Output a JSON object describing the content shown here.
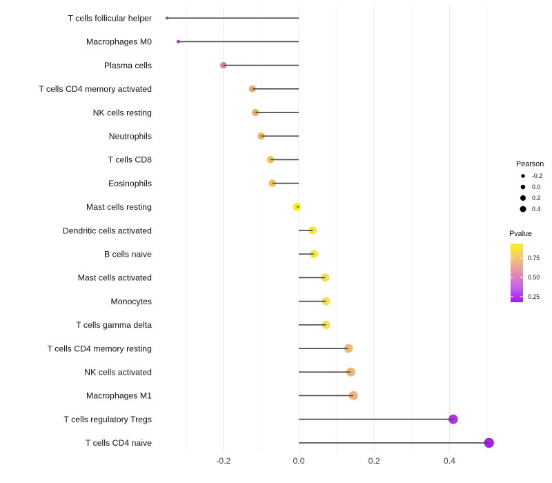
{
  "chart_data": {
    "type": "lollipop",
    "title": "",
    "xlabel": "",
    "ylabel": "",
    "x_ticks": [
      -0.2,
      0.0,
      0.2,
      0.4
    ],
    "x_tick_labels": [
      "-0.2",
      "0.0",
      "0.2",
      "0.4"
    ],
    "x_minor_ticks": [
      -0.3,
      -0.1,
      0.1,
      0.3,
      0.5
    ],
    "xlim": [
      -0.385,
      0.55
    ],
    "grid": true,
    "legend_position": "right",
    "points": [
      {
        "label": "T cells follicular helper",
        "pearson": -0.35,
        "color": "#ac4ec4",
        "r": 2.2
      },
      {
        "label": "Macrophages M0",
        "pearson": -0.32,
        "color": "#b14bc6",
        "r": 2.6
      },
      {
        "label": "Plasma cells",
        "pearson": -0.2,
        "color": "#dd8287",
        "r": 4.8
      },
      {
        "label": "T cells CD4 memory activated",
        "pearson": -0.123,
        "color": "#ebab60",
        "r": 5.1
      },
      {
        "label": "NK cells resting",
        "pearson": -0.115,
        "color": "#ebac5f",
        "r": 5.1
      },
      {
        "label": "Neutrophils",
        "pearson": -0.1,
        "color": "#edb45c",
        "r": 5.2
      },
      {
        "label": "T cells CD8",
        "pearson": -0.075,
        "color": "#f0c455",
        "r": 5.3
      },
      {
        "label": "Eosinophils",
        "pearson": -0.07,
        "color": "#f0c455",
        "r": 5.3
      },
      {
        "label": "Mast cells resting",
        "pearson": -0.005,
        "color": "#f8f001",
        "r": 5.7
      },
      {
        "label": "Dendritic cells activated",
        "pearson": 0.037,
        "color": "#f7e833",
        "r": 5.9
      },
      {
        "label": "B cells naive",
        "pearson": 0.04,
        "color": "#f7e833",
        "r": 5.9
      },
      {
        "label": "Mast cells activated",
        "pearson": 0.07,
        "color": "#f6de4d",
        "r": 6.1
      },
      {
        "label": "Monocytes",
        "pearson": 0.072,
        "color": "#f6de4d",
        "r": 6.1
      },
      {
        "label": "T cells gamma delta",
        "pearson": 0.072,
        "color": "#f6de4d",
        "r": 6.1
      },
      {
        "label": "T cells CD4 memory resting",
        "pearson": 0.132,
        "color": "#f2ba71",
        "r": 6.4
      },
      {
        "label": "NK cells activated",
        "pearson": 0.138,
        "color": "#f1b674",
        "r": 6.4
      },
      {
        "label": "Macrophages M1",
        "pearson": 0.145,
        "color": "#efb277",
        "r": 6.5
      },
      {
        "label": "T cells regulatory  Tregs",
        "pearson": 0.41,
        "color": "#ab35df",
        "r": 6.8
      },
      {
        "label": "T cells CD4 naive",
        "pearson": 0.505,
        "color": "#a021f0",
        "r": 7.2
      }
    ],
    "legend": {
      "size": {
        "title": "Pearson",
        "key_color": "#000000",
        "entries": [
          {
            "label": "-0.2",
            "r": 2.7
          },
          {
            "label": "0.0",
            "r": 3.3
          },
          {
            "label": "0.2",
            "r": 4.0
          },
          {
            "label": "0.4",
            "r": 4.5
          }
        ]
      },
      "color": {
        "title": "Pvalue",
        "tick_labels": [
          "0.75",
          "0.50",
          "0.25"
        ],
        "gradient_stops": [
          "#fbf116",
          "#f5c56f",
          "#e291ae",
          "#c55fe8",
          "#a016f9"
        ]
      }
    },
    "style": {
      "stem_color": "#4a4a4a",
      "grid_major_color": "#e9e9e9",
      "grid_minor_color": "#f4f4f4",
      "background": "#ffffff"
    }
  }
}
